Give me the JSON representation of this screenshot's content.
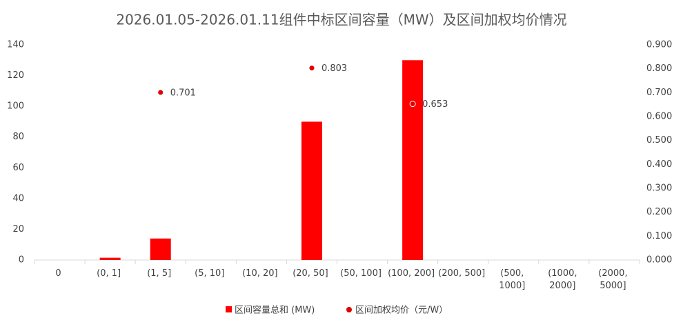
{
  "chart_data": {
    "type": "bar",
    "title": "2026.01.05-2026.01.11组件中标区间容量（MW）及区间加权均价情况",
    "categories": [
      "0",
      "(0, 1]",
      "(1, 5]",
      "(5, 10]",
      "(10, 20]",
      "(20, 50]",
      "(50, 100]",
      "(100, 200]",
      "(200, 500]",
      "(500, 1000]",
      "(1000, 2000]",
      "(2000, 5000]"
    ],
    "series": [
      {
        "name": "区间容量总和 (MW)",
        "type": "bar",
        "color": "#ff0000",
        "values": [
          null,
          1.5,
          14,
          null,
          null,
          90,
          null,
          130,
          null,
          null,
          null,
          null
        ]
      },
      {
        "name": "区间加权均价（元/W）",
        "type": "scatter",
        "axis": "y2",
        "color": "#e00000",
        "values": [
          null,
          null,
          0.701,
          null,
          null,
          0.803,
          null,
          0.653,
          null,
          null,
          null,
          null
        ]
      }
    ],
    "ylim": [
      0,
      140
    ],
    "yticks": [
      0,
      20,
      40,
      60,
      80,
      100,
      120,
      140
    ],
    "y2lim": [
      0,
      0.9
    ],
    "y2ticks": [
      {
        "value": 0,
        "label": "0.000"
      },
      {
        "value": 0.1,
        "label": "0.100"
      },
      {
        "value": 0.2,
        "label": "0.200"
      },
      {
        "value": 0.3,
        "label": "0.300"
      },
      {
        "value": 0.4,
        "label": "0.400"
      },
      {
        "value": 0.5,
        "label": "0.500"
      },
      {
        "value": 0.6,
        "label": "0.600"
      },
      {
        "value": 0.7,
        "label": "0.700"
      },
      {
        "value": 0.8,
        "label": "0.800"
      },
      {
        "value": 0.9,
        "label": "0.900"
      }
    ],
    "grid": false,
    "legend": "bottom"
  }
}
